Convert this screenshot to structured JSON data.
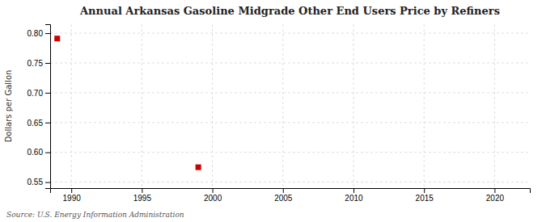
{
  "chart_data": {
    "type": "scatter",
    "title": "Annual Arkansas Gasoline Midgrade Other End Users Price by Refiners",
    "ylabel": "Dollars per Gallon",
    "annotations": [
      "Source: U.S. Energy Information Administration"
    ],
    "x": [
      1989,
      1999
    ],
    "values": [
      0.791,
      0.575
    ],
    "color": "#cc0000",
    "marker": "square",
    "xlim": [
      1988.5,
      2022.5
    ],
    "ylim": [
      0.54,
      0.815
    ],
    "xticks": [
      1990,
      1995,
      2000,
      2005,
      2010,
      2015,
      2020
    ],
    "yticks": [
      0.55,
      {
        "value": 0.6,
        "label": "0.60"
      },
      0.65,
      {
        "value": 0.7,
        "label": "0.70"
      },
      0.75,
      {
        "value": 0.8,
        "label": "0.80"
      }
    ],
    "grid": true
  }
}
